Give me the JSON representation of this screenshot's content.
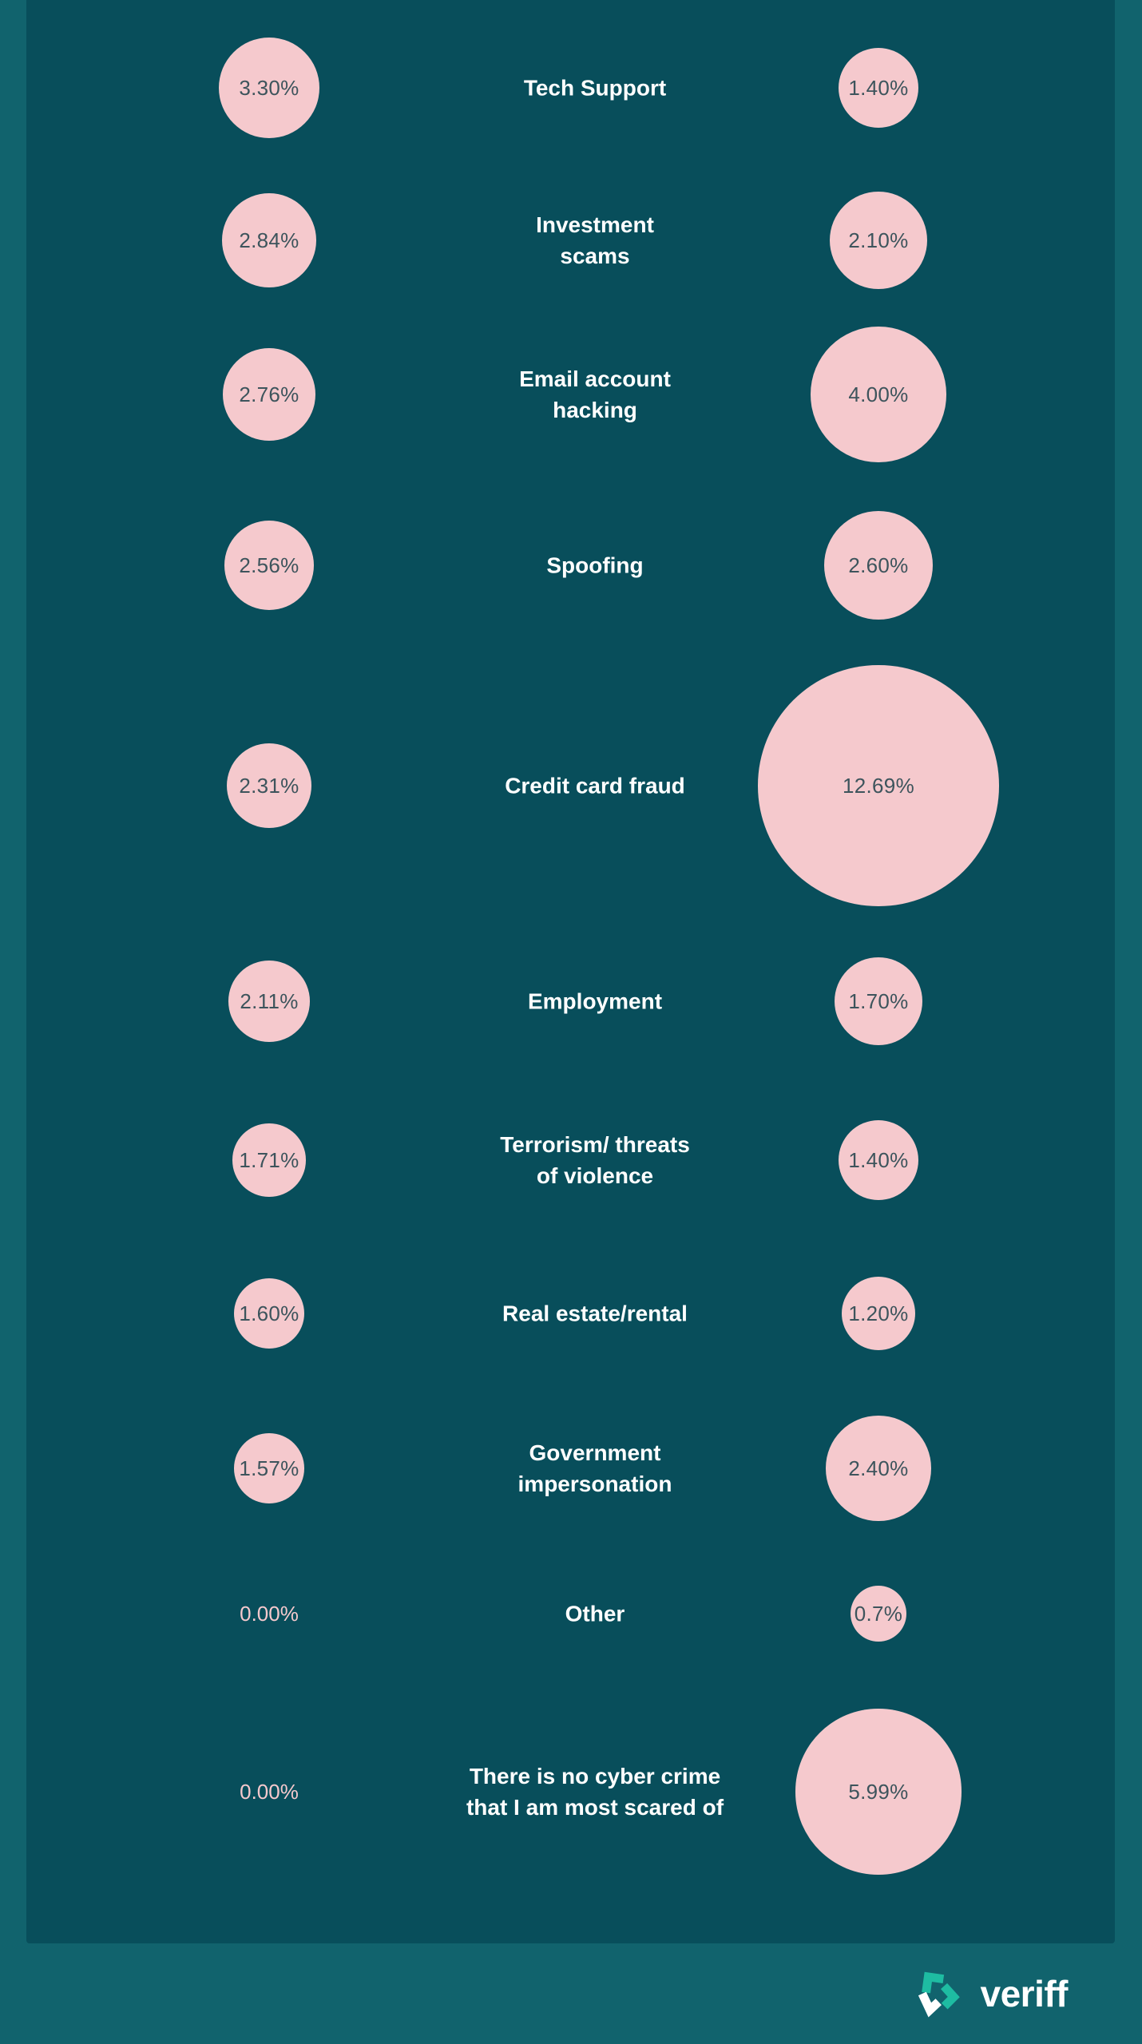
{
  "page": {
    "background_color": "#11636D",
    "panel_color": "#084E5B",
    "bubble_color": "#F5C9CD",
    "bubble_text_color": "#3D545C",
    "label_color": "#FFFFFF"
  },
  "footer": {
    "brand": "veriff",
    "logo_icon": "veriff-logomark",
    "logo_teal": "#1EBCA2",
    "logo_white": "#FFFFFF"
  },
  "chart_data": {
    "type": "bubble",
    "encoding": "circle area proportional to percentage; left and right value columns flank centered category labels",
    "columns": [
      "left",
      "right"
    ],
    "legend": "none visible",
    "categories": [
      "Tech Support",
      "Investment scams",
      "Email account hacking",
      "Spoofing",
      "Credit card fraud",
      "Employment",
      "Terrorism/ threats of violence",
      "Real estate/rental",
      "Government impersonation",
      "Other",
      "There is no cyber crime that I am most scared of"
    ],
    "rows": [
      {
        "category": "Tech Support",
        "left": 3.3,
        "left_label": "3.30%",
        "right": 1.4,
        "right_label": "1.40%"
      },
      {
        "category": "Investment\nscams",
        "left": 2.84,
        "left_label": "2.84%",
        "right": 2.1,
        "right_label": "2.10%"
      },
      {
        "category": "Email account\nhacking",
        "left": 2.76,
        "left_label": "2.76%",
        "right": 4.0,
        "right_label": "4.00%"
      },
      {
        "category": "Spoofing",
        "left": 2.56,
        "left_label": "2.56%",
        "right": 2.6,
        "right_label": "2.60%"
      },
      {
        "category": "Credit card fraud",
        "left": 2.31,
        "left_label": "2.31%",
        "right": 12.69,
        "right_label": "12.69%"
      },
      {
        "category": "Employment",
        "left": 2.11,
        "left_label": "2.11%",
        "right": 1.7,
        "right_label": "1.70%"
      },
      {
        "category": "Terrorism/ threats\nof violence",
        "left": 1.71,
        "left_label": "1.71%",
        "right": 1.4,
        "right_label": "1.40%"
      },
      {
        "category": "Real estate/rental",
        "left": 1.6,
        "left_label": "1.60%",
        "right": 1.2,
        "right_label": "1.20%"
      },
      {
        "category": "Government\nimpersonation",
        "left": 1.57,
        "left_label": "1.57%",
        "right": 2.4,
        "right_label": "2.40%"
      },
      {
        "category": "Other",
        "left": 0.0,
        "left_label": "0.00%",
        "right": 0.7,
        "right_label": "0.7%"
      },
      {
        "category": "There is no cyber crime\nthat I am most scared of",
        "left": 0.0,
        "left_label": "0.00%",
        "right": 5.99,
        "right_label": "5.99%"
      }
    ]
  }
}
